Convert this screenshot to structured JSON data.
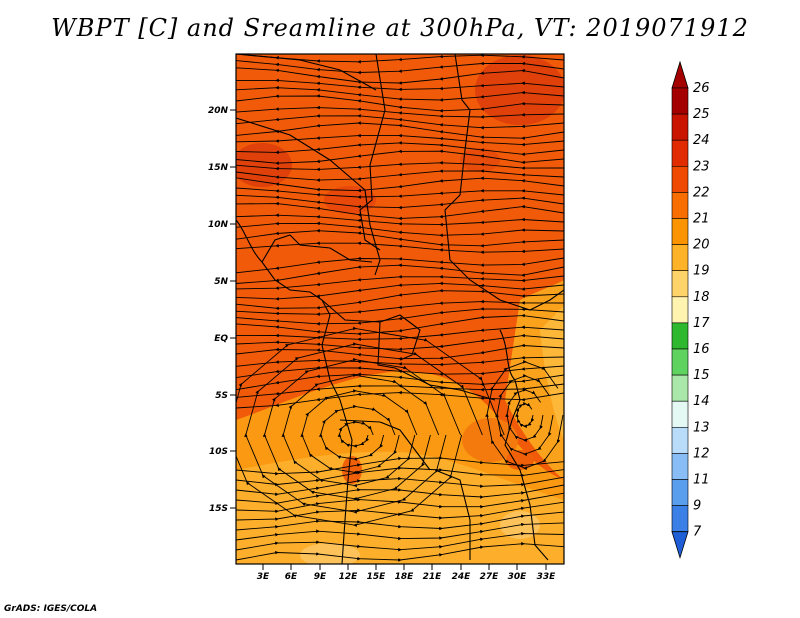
{
  "title": "WBPT [C] and Sreamline at 300hPa, VT: 2019071912",
  "credit": "GrADS: IGES/COLA",
  "map": {
    "lat_labels": [
      "20N",
      "15N",
      "10N",
      "5N",
      "EQ",
      "5S",
      "10S",
      "15S"
    ],
    "lon_labels": [
      "3E",
      "6E",
      "9E",
      "12E",
      "15E",
      "18E",
      "21E",
      "24E",
      "27E",
      "30E",
      "33E"
    ]
  },
  "colorbar": {
    "levels": [
      "26",
      "25",
      "24",
      "23",
      "22",
      "21",
      "20",
      "19",
      "18",
      "17",
      "16",
      "15",
      "14",
      "13",
      "12",
      "11",
      "9",
      "7"
    ],
    "colors": [
      "#a50000",
      "#c81400",
      "#e02c00",
      "#f04a00",
      "#f86e00",
      "#fb9400",
      "#fdb227",
      "#fed36a",
      "#fff3b0",
      "#2eb82e",
      "#5fd35f",
      "#a9e8a9",
      "#e4f8f4",
      "#b8dcfa",
      "#88bef5",
      "#5a9eee",
      "#3a80e6",
      "#1e5fd8"
    ],
    "top_color": "#a50000",
    "bottom_color": "#1e5fd8"
  }
}
